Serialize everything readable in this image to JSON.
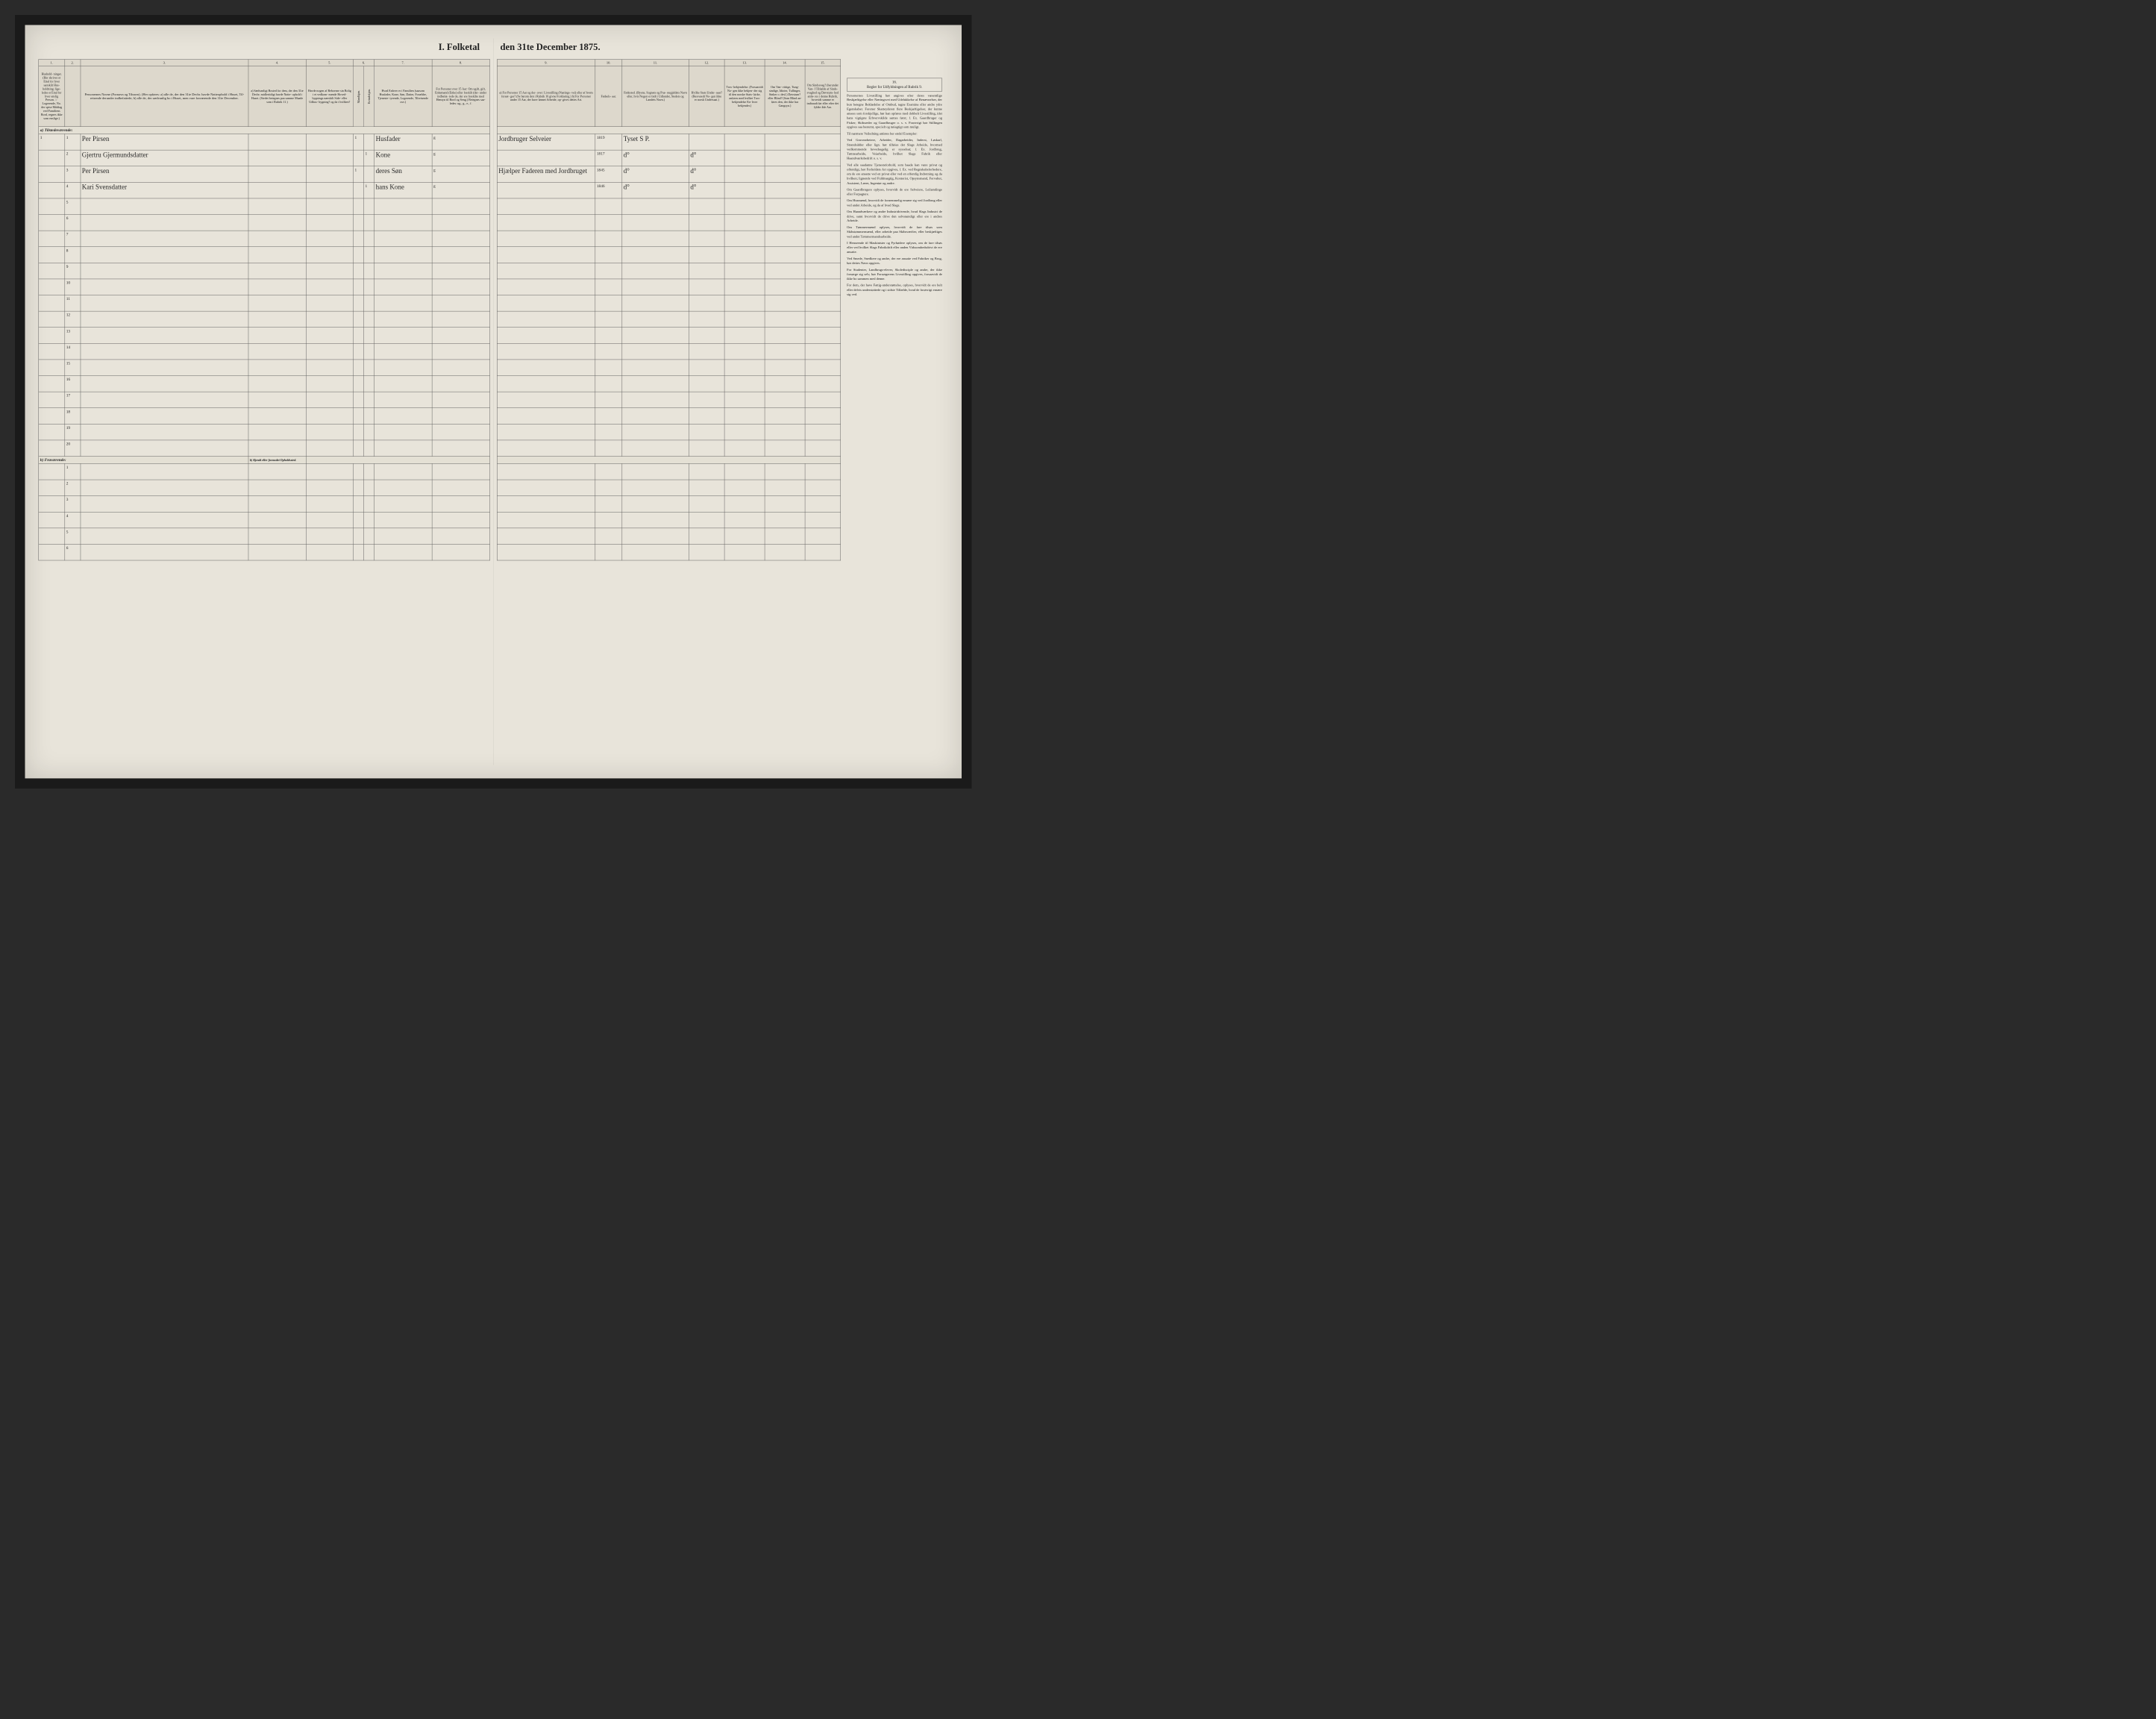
{
  "title_left": "I. Folketal",
  "title_right": "den 31te December 1875.",
  "col_numbers_left": [
    "1.",
    "2.",
    "3.",
    "4.",
    "5.",
    "6.",
    "7.",
    "8."
  ],
  "col_numbers_right": [
    "9.",
    "10.",
    "11.",
    "12.",
    "13.",
    "14.",
    "15.",
    "16."
  ],
  "headers_left": {
    "c1": "Hushold-\nninger.\n(Her skrives et\nEttal for hver\nsærskilt Hus-\nholdning; lige-\nledes et Ettal for\nhver enslig\nPerson.\n☞ Logerende,\nNo.\nder spise Middag\nved Familiens\nBord, regnes ikke\nsom enslige.)",
    "c2": "",
    "c3": "Personernes Navne (Fornavn og Tilnavn).\n(Her opføres:\na) alle de, der den 31te Decbr. havde Natteophold i Huset, Til-\nreisende derunder indbefattede;\nb) alle de, der sædvanlig bo i Huset, men vare fraværende\nden 31te December.",
    "c4": "a) Sædvanligt\nBosted for\ndem, der den\n31te Decbr.\nmidlertidigt\nhavde Natte-\nophold i Huset.\n(Stedet betegnes\npaa samme Maade\nsom i Rubrik 11.)",
    "c5": "Havde nogen\naf Beboerne\nsin Bolig\ni et vedkom-\nmende Hoved-\nbygnings\nnærskilt Side-\neller Udhus-\nbygning?\nog da i\nhvilken?",
    "c6": "Kjøn.\nHer sat\ntes et 1\nEttal i\nved vedkom-\nmende\nRubrik.",
    "c6a": "Mandkjøn.",
    "c6b": "Kvindekjøn.",
    "c7": "Hvad Enhver\ner i Familien\n(saasom Husfader,\nKone, Søn, Datter,\nForældre, Tjeneste-\ntyrende, Logerende,\nTilreisende osv.)",
    "c8": "For Personer\nover 15 Aar:\nOm ugift, gift,\nEnkemand\n(Enke) eller\nfraskilt (der-\nunder indbefat-\ntede de, der ere\nfraskilte med\nHensyn til Bord\nog Seng.)\nBetegnes saa-\nledes:\nug., g., e., f."
  },
  "headers_right": {
    "c9": "a) For Personer 15 Aar og der-\nover: Livsstilling (Nærings-\nvei) eller af hvem forsør-\nges? (Se herom den i Rubrik 16\ngivne Forklaring.)\nb) For Personer under 15 Aar,\nder have lønnet Arbeide, op-\ngives dettes Art.",
    "c10": "Fødsels-\naar.",
    "c11": "Fødested.\n(Byens, Sognets og Præ-\nstegjeldets Navn eller, hvis\nNogen er født i Udlandet,\nStedets og Landets\nNavn.)",
    "c12": "Hvilke\nStats Under-\nsaat?\n(Besvaredt No-\ngen ikke er\nnorsk\nUndersaat.)",
    "c13": "Tros-\nbekjendelse.\n(Forsaavidt No-\ngen ikke bekjen-\nder sig til den\nnorske Stats-\nkirke, anføres\nmed hvilket Tros-\nbekjendelse En-\nhver bekjender.)",
    "c14": "Om Van-\nvittige, Tung-\nsindige, Idioter,\nTullinger,\nSinker o. desl.)\nDøvstum?\neller Blind?\n(Som Blind an-\nføres den, der\nikke har\nGangsyn.)",
    "c15": "Om\nSindssvag?\n(herunder Van-\nI Tilfælde\naf Sinds-\nsvaghed og\nDøvstum-\nhed anfø-\nres i denne\nRubrik,\nhvorvidt\nsamme er\nindtraadt\nfør eller\nefter det\nfyldte\n4de Aar.",
    "c16": "Regler for Udfyldningen\naf\nRubrik 9."
  },
  "section_a": "a) Tilstedeværende:",
  "section_b": "b) Fraværende:",
  "section_b_col4": "b) Kjendt eller\nformodet\nOpholdssted.",
  "rows": [
    {
      "n": "1",
      "hh": "1",
      "name": "Per Pirsen",
      "c5": "",
      "m": "1",
      "k": "",
      "rel": "Husfader",
      "civ": "g",
      "occ": "Jordbruger\nSelveier",
      "year": "1819",
      "place": "Tyset S P.",
      "d": ""
    },
    {
      "n": "2",
      "hh": "",
      "name": "Gjertru Gjermundsdatter",
      "c5": "",
      "m": "",
      "k": "1",
      "rel": "Kone",
      "civ": "g",
      "occ": "",
      "year": "1817",
      "place": "d°",
      "d": "d°"
    },
    {
      "n": "3",
      "hh": "",
      "name": "Per Pirsen",
      "c5": "",
      "m": "1",
      "k": "",
      "rel": "deres\nSøn",
      "civ": "g",
      "occ": "Hjælper Faderen\nmed Jordbruget",
      "year": "1845",
      "place": "d°",
      "d": "d°"
    },
    {
      "n": "4",
      "hh": "",
      "name": "Kari Svensdatter",
      "c5": "",
      "m": "",
      "k": "1",
      "rel": "hans\nKone",
      "civ": "g",
      "occ": "",
      "year": "1846",
      "place": "d°",
      "d": "d°"
    }
  ],
  "empty_a": [
    "5",
    "6",
    "7",
    "8",
    "9",
    "10",
    "11",
    "12",
    "13",
    "14",
    "15",
    "16",
    "17",
    "18",
    "19",
    "20"
  ],
  "empty_b": [
    "1",
    "2",
    "3",
    "4",
    "5",
    "6"
  ],
  "instructions": {
    "title": "Personernes Livsstilling",
    "paras": [
      "Personernes Livsstilling bør angives efter deres væsentlige Beskjæftigelse eller Næringsvei med Udelukkelse af Benævnelser, der kun betegne Beklædelse af Ombud, tagne Examina eller andre ydre Egenskaber. Forener Skatteyderen flere Beskjæftigelser, der kunne ansees som forskjellige, bør han opføres med dobbelt Livsstilling, idet hans vigtigste Erhvervskilde sættes først; f. Ex. Gaardbruger og Fisker; Skibsreder og Gaardbruger o. s. v. Forøvrigt bør Stillingen opgives saa bestemt, specielt og nøiagtigt som muligt.",
      "Til nærmere Veiledning anføres her endel Exempler:",
      "Ved Gruvearbeiere, Arbeider, Dagarbeider, Inderst, Løskarl, Strandsidder eller lign. bør tilføies det Slags Arbeide, hvormed vedkommende hovedsagelig er sysselsat; f. Ex. Jordbrug, Tømtearbeide, Veiarbeide, hvilket Slags Fabrik eller Haandværksbedrift o. s. v.",
      "Ved alle saadanne Tjenesteforhold, som baade kan være privat og offentligt, bør Forholdets Art opgives, f. Ex. ved Regnskabsforbedere, om de ere ansatte ved en privat eller ved en offentlig Indretning og da hvilken; lignende ved Fuldmægtig, Kontorist, Opsynsmand, Forvalter, Assistent, Lærer, Ingeniør og andre.",
      "Om Gaardbrugere oplyses, hvorvidt de ere Selveiere, Leilændinge eller Forpagtere.",
      "Om Husmænd, hvorvidt de fornemmelig ernære sig ved Jordbrug eller ved andet Arbeide, og da af hvad Slags.",
      "Om Haandværkere og andre Industridrivende, hvad Slags Industri de drive, samt hvorvidt de drive den selvstændigt eller ere i andres Arbeide.",
      "Om Tømmermænd oplyses, hvorvidt de fare tilsøs som Skibstømmermænd, eller arbeide paa Skibsværfter, eller beskjæftiges ved andet Tømmermandsarbeide.",
      "I Henseende til Maskinister og Fyrbødere oplyses, om de fare tilsøs eller ved hvilket Slags Fabrikdrift eller anden Virksomhedsdrivt de ere ansatte.",
      "Ved Smede, Snedkere og andre, der ere ansatte ved Fabriker og Brug, bør dettes Navn opgives.",
      "For Studenter, Landbrugs-elever, Skoledisciple og andre, der ikke forsørge sig selv, bør Forsørgerens Livsstilling opgives, forsaavidt de ikke bo sammen med denne.",
      "For dem, der have Fattig-understøttelse, oplyses, hvorvidt de ere helt eller delvis understøttede og i sidste Tilfælde, hvad de forøvrigt ernære sig ved."
    ]
  },
  "colors": {
    "paper": "#e8e4da",
    "ink": "#222222",
    "border": "#555555",
    "frame": "#1a1a1a"
  }
}
